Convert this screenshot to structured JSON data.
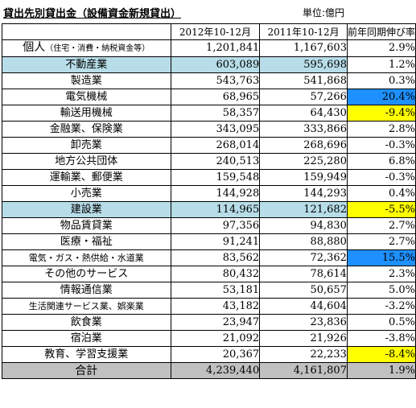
{
  "title": "貸出先別貸出金（設備資金新規貸出）",
  "unit": "単位:億円",
  "headers": {
    "col1": "2012年10-12月",
    "col2": "2011年10-12月",
    "col3": "前年同期伸び率"
  },
  "rows": [
    {
      "name": "個人",
      "sub": "（住宅・消費・納税資金等）",
      "v2012": "1,201,841",
      "v2011": "1,167,603",
      "growth": "2.9%"
    },
    {
      "name": "不動産業",
      "v2012": "603,089",
      "v2011": "595,698",
      "growth": "1.2%"
    },
    {
      "name": "製造業",
      "v2012": "543,763",
      "v2011": "541,868",
      "growth": "0.3%"
    },
    {
      "name": "電気機械",
      "v2012": "68,965",
      "v2011": "57,266",
      "growth": "20.4%"
    },
    {
      "name": "輸送用機械",
      "v2012": "58,357",
      "v2011": "64,430",
      "growth": "-9.4%"
    },
    {
      "name": "金融業、保険業",
      "v2012": "343,095",
      "v2011": "333,866",
      "growth": "2.8%"
    },
    {
      "name": "卸売業",
      "v2012": "268,014",
      "v2011": "268,696",
      "growth": "-0.3%"
    },
    {
      "name": "地方公共団体",
      "v2012": "240,513",
      "v2011": "225,280",
      "growth": "6.8%"
    },
    {
      "name": "運輸業、郵便業",
      "v2012": "159,548",
      "v2011": "159,949",
      "growth": "-0.3%"
    },
    {
      "name": "小売業",
      "v2012": "144,928",
      "v2011": "144,293",
      "growth": "0.4%"
    },
    {
      "name": "建設業",
      "v2012": "114,965",
      "v2011": "121,682",
      "growth": "-5.5%"
    },
    {
      "name": "物品賃貸業",
      "v2012": "97,356",
      "v2011": "94,830",
      "growth": "2.7%"
    },
    {
      "name": "医療・福祉",
      "v2012": "91,241",
      "v2011": "88,880",
      "growth": "2.7%"
    },
    {
      "name": "電気・ガス・熱供給・水道業",
      "v2012": "83,562",
      "v2011": "72,362",
      "growth": "15.5%"
    },
    {
      "name": "その他のサービス",
      "v2012": "80,432",
      "v2011": "78,614",
      "growth": "2.3%"
    },
    {
      "name": "情報通信業",
      "v2012": "53,181",
      "v2011": "50,657",
      "growth": "5.0%"
    },
    {
      "name": "生活関連サービス業、娯楽業",
      "v2012": "43,182",
      "v2011": "44,604",
      "growth": "-3.2%"
    },
    {
      "name": "飲食業",
      "v2012": "23,947",
      "v2011": "23,836",
      "growth": "0.5%"
    },
    {
      "name": "宿泊業",
      "v2012": "21,092",
      "v2011": "21,926",
      "growth": "-3.8%"
    },
    {
      "name": "教育、学習支援業",
      "v2012": "20,367",
      "v2011": "22,233",
      "growth": "-8.4%"
    }
  ],
  "total": {
    "name": "合計",
    "v2012": "4,239,440",
    "v2011": "4,161,807",
    "growth": "1.9%"
  },
  "colors": {
    "row_highlight": "#b7dde8",
    "growth_high": "#1e90ff",
    "growth_negative": "#ffff00",
    "total_row": "#c0c0c0"
  }
}
